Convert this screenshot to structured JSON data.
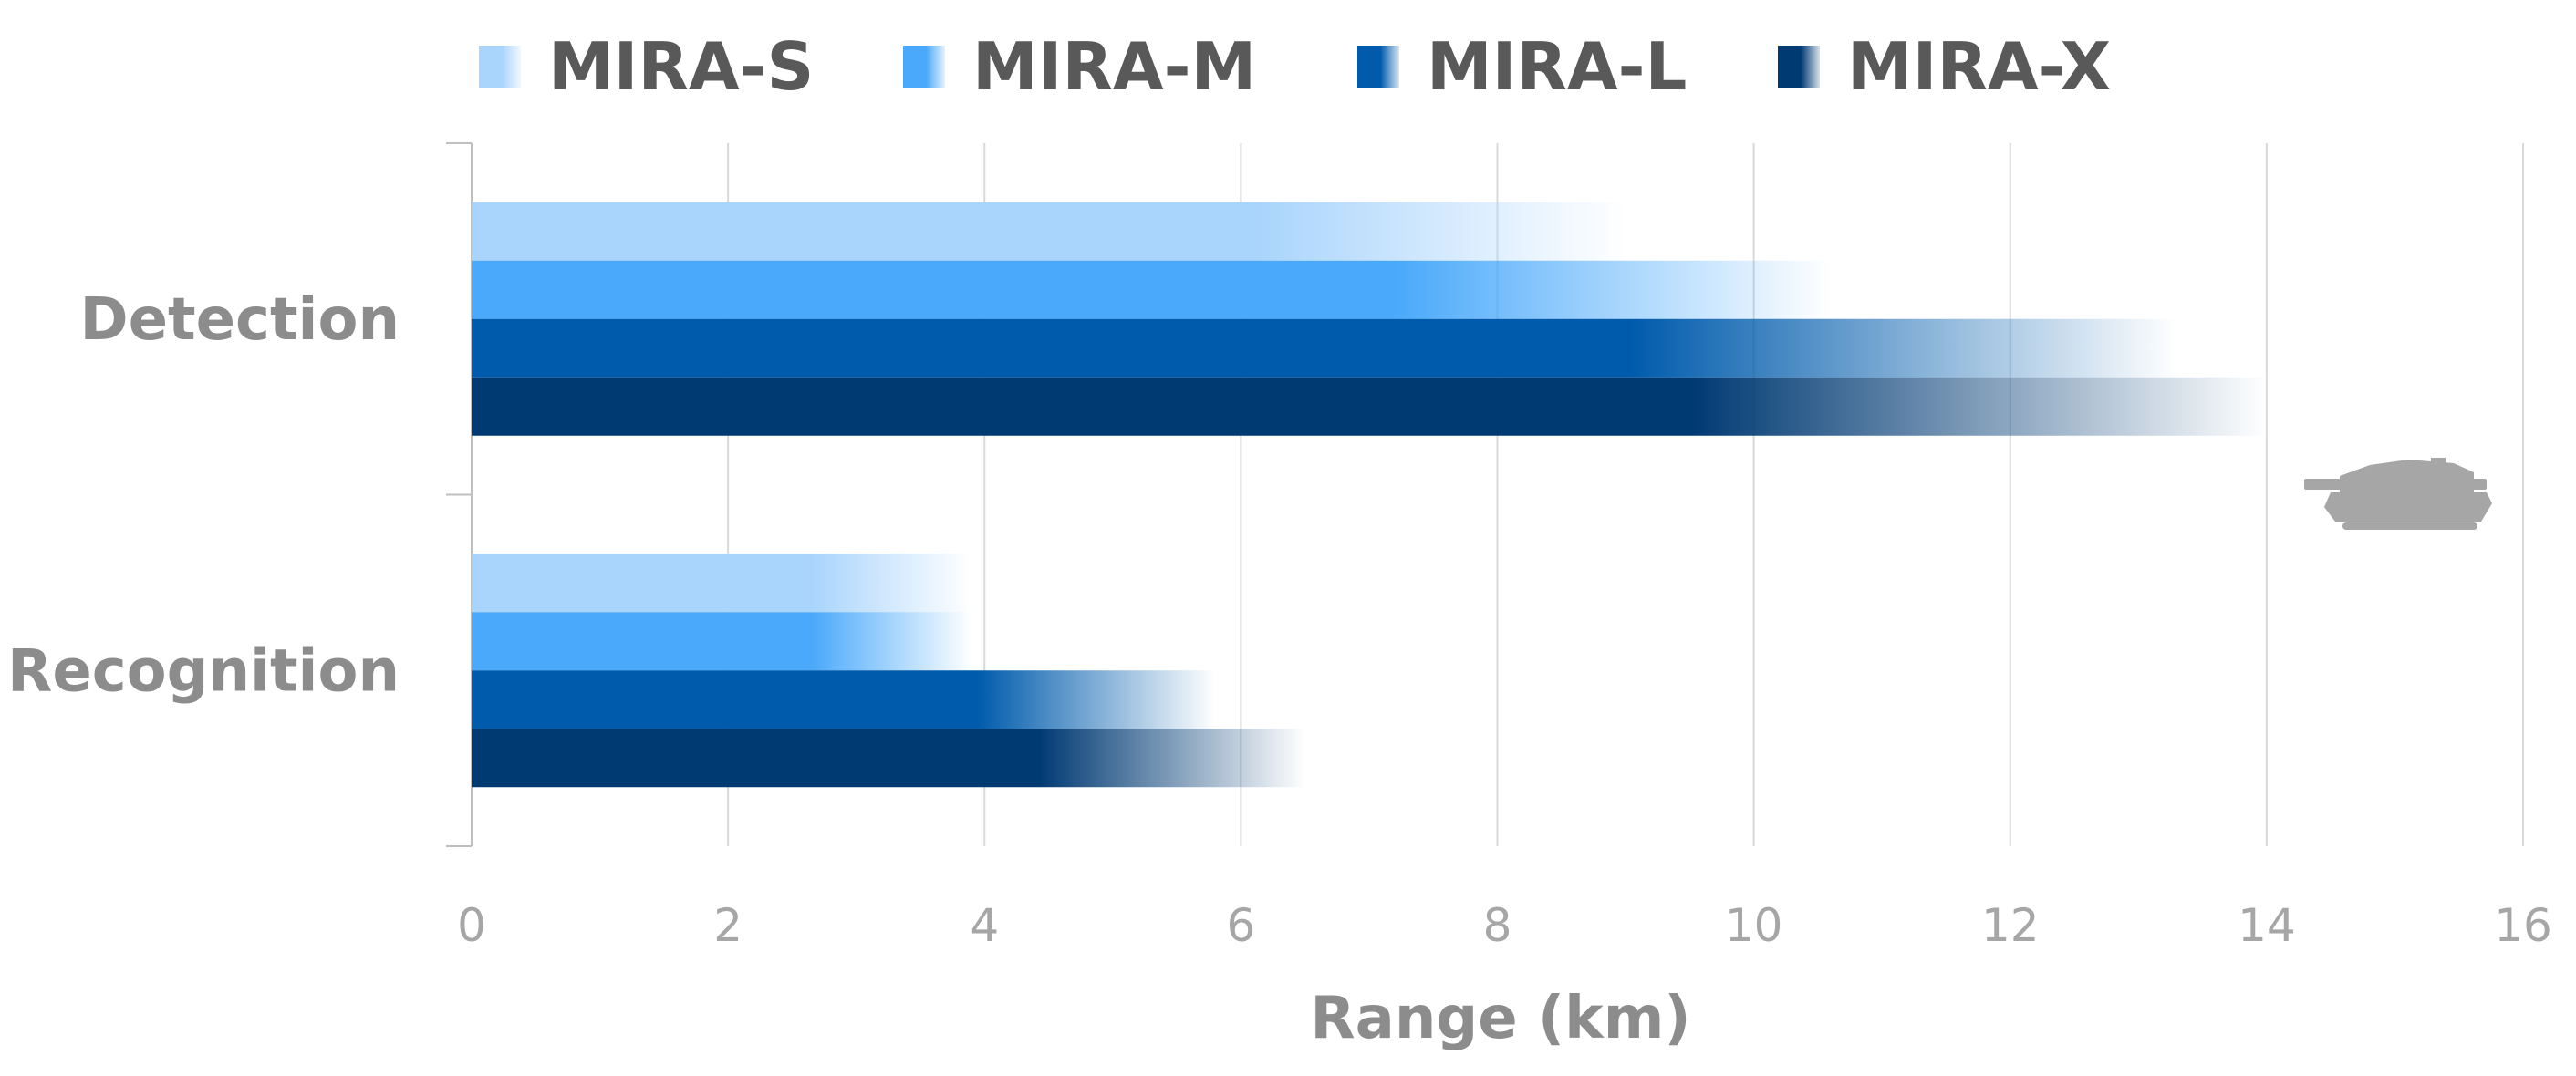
{
  "chart_data": {
    "type": "bar",
    "orientation": "horizontal",
    "categories": [
      "Detection",
      "Recognition"
    ],
    "series": [
      {
        "name": "MIRA-S",
        "values": [
          9.0,
          3.9
        ],
        "color": "#a9d4fc"
      },
      {
        "name": "MIRA-M",
        "values": [
          10.6,
          3.9
        ],
        "color": "#4aa9fa"
      },
      {
        "name": "MIRA-L",
        "values": [
          13.3,
          5.8
        ],
        "color": "#005bac"
      },
      {
        "name": "MIRA-X",
        "values": [
          14.0,
          6.5
        ],
        "color": "#003a73"
      }
    ],
    "xlabel": "Range (km)",
    "xlim": [
      0,
      16
    ],
    "xticks": [
      "0",
      "2",
      "4",
      "6",
      "8",
      "10",
      "12",
      "14",
      "16"
    ],
    "grid": "vertical",
    "legend_position": "top",
    "bar_style": "solid-to-transparent gradient",
    "decoration_icon": "tank-silhouette-icon"
  }
}
